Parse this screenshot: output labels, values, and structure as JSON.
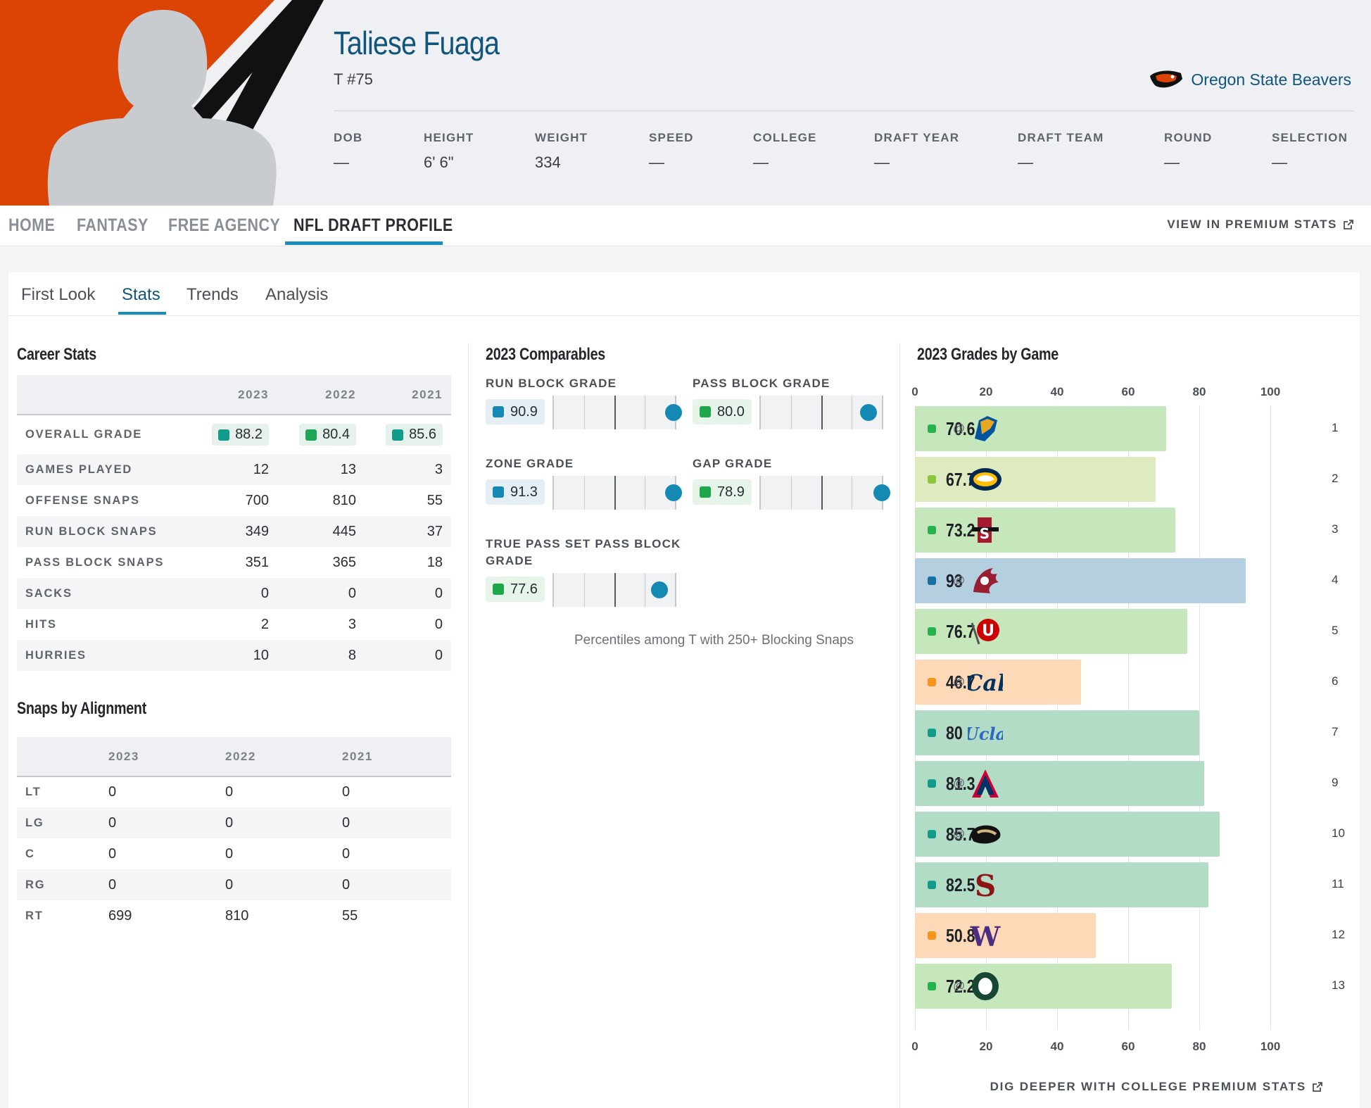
{
  "player": {
    "name": "Taliese Fuaga",
    "position": "T #75",
    "team": "Oregon State Beavers",
    "colors": {
      "team_orange": "#dc4405",
      "team_black": "#000000"
    }
  },
  "bio": [
    {
      "label": "DOB",
      "value": "—"
    },
    {
      "label": "HEIGHT",
      "value": "6' 6\""
    },
    {
      "label": "WEIGHT",
      "value": "334"
    },
    {
      "label": "SPEED",
      "value": "—"
    },
    {
      "label": "COLLEGE",
      "value": "—"
    },
    {
      "label": "DRAFT YEAR",
      "value": "—"
    },
    {
      "label": "DRAFT TEAM",
      "value": "—"
    },
    {
      "label": "ROUND",
      "value": "—"
    },
    {
      "label": "SELECTION",
      "value": "—"
    }
  ],
  "nav": {
    "items": [
      "HOME",
      "FANTASY",
      "FREE AGENCY",
      "NFL DRAFT PROFILE"
    ],
    "active": "NFL DRAFT PROFILE",
    "premium_link": "VIEW IN PREMIUM STATS"
  },
  "subtabs": {
    "items": [
      "First Look",
      "Stats",
      "Trends",
      "Analysis"
    ],
    "active": "Stats"
  },
  "career": {
    "title": "Career Stats",
    "years": [
      "2023",
      "2022",
      "2021"
    ],
    "grades": {
      "label": "OVERALL GRADE",
      "values": [
        "88.2",
        "80.4",
        "85.6"
      ]
    },
    "rows": [
      {
        "label": "GAMES PLAYED",
        "values": [
          "12",
          "13",
          "3"
        ]
      },
      {
        "label": "OFFENSE SNAPS",
        "values": [
          "700",
          "810",
          "55"
        ]
      },
      {
        "label": "RUN BLOCK SNAPS",
        "values": [
          "349",
          "445",
          "37"
        ]
      },
      {
        "label": "PASS BLOCK SNAPS",
        "values": [
          "351",
          "365",
          "18"
        ]
      },
      {
        "label": "SACKS",
        "values": [
          "0",
          "0",
          "0"
        ]
      },
      {
        "label": "HITS",
        "values": [
          "2",
          "3",
          "0"
        ]
      },
      {
        "label": "HURRIES",
        "values": [
          "10",
          "8",
          "0"
        ]
      }
    ]
  },
  "alignment": {
    "title": "Snaps by Alignment",
    "years": [
      "2023",
      "2022",
      "2021"
    ],
    "rows": [
      {
        "label": "LT",
        "values": [
          "0",
          "0",
          "0"
        ]
      },
      {
        "label": "LG",
        "values": [
          "0",
          "0",
          "0"
        ]
      },
      {
        "label": "C",
        "values": [
          "0",
          "0",
          "0"
        ]
      },
      {
        "label": "RG",
        "values": [
          "0",
          "0",
          "0"
        ]
      },
      {
        "label": "RT",
        "values": [
          "699",
          "810",
          "55"
        ]
      }
    ]
  },
  "comparables": {
    "title": "2023 Comparables",
    "items": [
      {
        "label": "RUN BLOCK GRADE",
        "grade": "90.9",
        "tier": "blue",
        "percentile": 0.99
      },
      {
        "label": "PASS BLOCK GRADE",
        "grade": "80.0",
        "tier": "green",
        "percentile": 0.89
      },
      {
        "label": "ZONE GRADE",
        "grade": "91.3",
        "tier": "blue",
        "percentile": 0.99
      },
      {
        "label": "GAP GRADE",
        "grade": "78.9",
        "tier": "green",
        "percentile": 1.0
      },
      {
        "label": "TRUE PASS SET PASS BLOCK GRADE",
        "grade": "77.6",
        "tier": "green",
        "percentile": 0.87
      }
    ],
    "note": "Percentiles among T with 250+ Blocking Snaps"
  },
  "chart_data": {
    "type": "bar",
    "title": "2023 Grades by Game",
    "orientation": "horizontal",
    "xlim": [
      0,
      100
    ],
    "xticks": [
      "0",
      "20",
      "40",
      "60",
      "80",
      "100"
    ],
    "categories": [
      "1",
      "2",
      "3",
      "4",
      "5",
      "6",
      "7",
      "9",
      "10",
      "11",
      "12",
      "13"
    ],
    "away": [
      true,
      false,
      false,
      true,
      false,
      true,
      false,
      true,
      true,
      false,
      false,
      true
    ],
    "opponents": [
      "San Jose State",
      "UC Davis",
      "San Diego State",
      "Washington State",
      "Utah",
      "California",
      "UCLA",
      "Arizona",
      "Colorado",
      "Stanford",
      "Washington",
      "Oregon"
    ],
    "values": [
      70.6,
      67.7,
      73.2,
      93,
      76.7,
      46.7,
      80,
      81.3,
      85.7,
      82.5,
      50.8,
      72.2
    ],
    "labels": [
      "70.6",
      "67.7",
      "73.2",
      "93",
      "76.7",
      "46.7",
      "80",
      "81.3",
      "85.7",
      "82.5",
      "50.8",
      "72.2"
    ],
    "at_symbol": "@",
    "footer_link": "DIG DEEPER WITH COLLEGE PREMIUM STATS"
  }
}
